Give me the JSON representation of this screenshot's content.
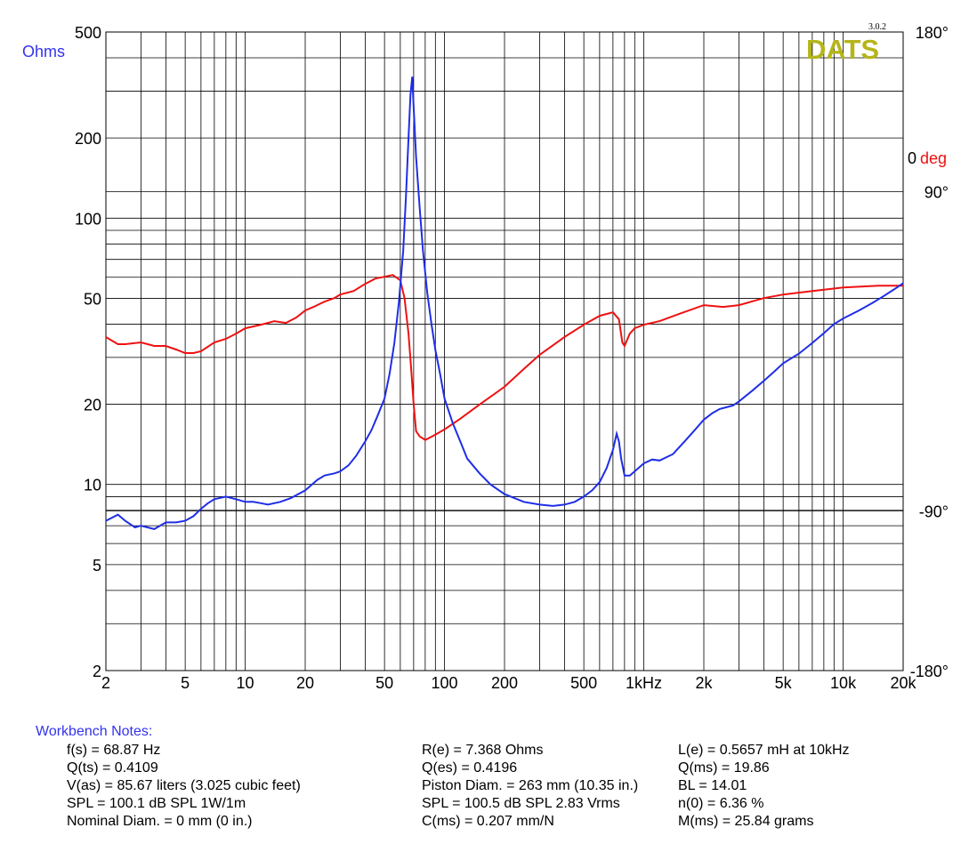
{
  "chart_data": {
    "type": "line",
    "logo": "DATS",
    "version": "3.0.2",
    "y_left_unit": "Ohms",
    "y_right_unit": "deg",
    "y_right_zero_label": "0",
    "x_scale": "log",
    "y_scale": "log",
    "xlim": [
      2,
      20000
    ],
    "ylim": [
      2,
      500
    ],
    "y_right_lim": [
      -180,
      180
    ],
    "x_ticks": [
      {
        "value": 2,
        "label": "2"
      },
      {
        "value": 5,
        "label": "5"
      },
      {
        "value": 10,
        "label": "10"
      },
      {
        "value": 20,
        "label": "20"
      },
      {
        "value": 50,
        "label": "50"
      },
      {
        "value": 100,
        "label": "100"
      },
      {
        "value": 200,
        "label": "200"
      },
      {
        "value": 500,
        "label": "500"
      },
      {
        "value": 1000,
        "label": "1kHz"
      },
      {
        "value": 2000,
        "label": "2k"
      },
      {
        "value": 5000,
        "label": "5k"
      },
      {
        "value": 10000,
        "label": "10k"
      },
      {
        "value": 20000,
        "label": "20k"
      }
    ],
    "y_ticks": [
      {
        "value": 500,
        "label": "500"
      },
      {
        "value": 200,
        "label": "200"
      },
      {
        "value": 100,
        "label": "100"
      },
      {
        "value": 50,
        "label": "50"
      },
      {
        "value": 20,
        "label": "20"
      },
      {
        "value": 10,
        "label": "10"
      },
      {
        "value": 5,
        "label": "5"
      },
      {
        "value": 2,
        "label": "2"
      }
    ],
    "y_right_ticks": [
      {
        "value": 180,
        "label": "180°"
      },
      {
        "value": 90,
        "label": "90°"
      },
      {
        "value": -90,
        "label": "-90°"
      },
      {
        "value": -180,
        "label": "-180°"
      }
    ],
    "grid": true,
    "colors": {
      "impedance": "#1f2ee6",
      "phase": "#ee1111",
      "logo": "#b5b51a",
      "label_left": "#3333ee",
      "label_right": "#ee1111",
      "notes_title": "#3333ee"
    },
    "series": [
      {
        "key": "impedance",
        "axis": "left",
        "x": [
          2,
          2.3,
          2.5,
          2.8,
          3,
          3.5,
          4,
          4.5,
          5,
          5.5,
          6,
          6.5,
          7,
          8,
          9,
          10,
          11,
          12,
          13,
          15,
          17,
          20,
          23,
          25,
          28,
          30,
          33,
          36,
          40,
          43,
          46,
          50,
          53,
          56,
          59,
          62,
          64,
          66,
          67.5,
          68.87,
          70,
          72,
          75,
          78,
          82,
          86,
          90,
          95,
          100,
          110,
          120,
          130,
          150,
          170,
          200,
          250,
          300,
          350,
          400,
          450,
          500,
          550,
          600,
          650,
          700,
          730,
          750,
          770,
          800,
          850,
          900,
          1000,
          1100,
          1200,
          1400,
          1600,
          1800,
          2000,
          2200,
          2400,
          2600,
          2800,
          3000,
          3500,
          4000,
          4500,
          5000,
          6000,
          7000,
          8000,
          9000,
          10000,
          12000,
          14000,
          16000,
          18000,
          20000
        ],
        "y": [
          7.3,
          7.7,
          7.3,
          6.9,
          7.0,
          6.8,
          7.2,
          7.2,
          7.3,
          7.6,
          8.1,
          8.5,
          8.8,
          9.0,
          8.8,
          8.6,
          8.6,
          8.5,
          8.4,
          8.6,
          8.9,
          9.5,
          10.4,
          10.8,
          11.0,
          11.2,
          11.8,
          12.8,
          14.5,
          16.0,
          18.0,
          21.0,
          26.0,
          34.0,
          48.0,
          75.0,
          120.0,
          200.0,
          290.0,
          340.0,
          260.0,
          170.0,
          110.0,
          75.0,
          52.0,
          40.0,
          32.0,
          26.0,
          21.0,
          17.0,
          14.5,
          12.5,
          11.0,
          10.0,
          9.2,
          8.6,
          8.4,
          8.3,
          8.4,
          8.6,
          9.0,
          9.5,
          10.2,
          11.5,
          13.5,
          15.5,
          14.5,
          12.5,
          10.8,
          10.8,
          11.2,
          12.0,
          12.4,
          12.3,
          13.0,
          14.5,
          16.0,
          17.5,
          18.5,
          19.2,
          19.5,
          19.8,
          20.5,
          22.5,
          24.5,
          26.5,
          28.5,
          31.0,
          34.0,
          37.0,
          40.0,
          42.0,
          45.0,
          48.0,
          51.0,
          54.0,
          57.0
        ]
      },
      {
        "key": "phase",
        "axis": "right",
        "x": [
          2,
          2.3,
          2.5,
          3,
          3.5,
          4,
          4.5,
          5,
          5.5,
          6,
          7,
          8,
          9,
          10,
          12,
          14,
          16,
          18,
          20,
          22,
          25,
          28,
          30,
          35,
          40,
          45,
          50,
          55,
          60,
          63,
          66,
          68,
          70,
          72,
          75,
          80,
          90,
          100,
          120,
          150,
          200,
          250,
          300,
          400,
          500,
          600,
          700,
          750,
          780,
          800,
          850,
          900,
          1000,
          1200,
          1500,
          2000,
          2500,
          3000,
          4000,
          5000,
          7000,
          10000,
          15000,
          20000
        ],
        "y": [
          8,
          4,
          4,
          5,
          3,
          3,
          1,
          -1,
          -1,
          0,
          5,
          7,
          10,
          13,
          15,
          17,
          16,
          19,
          23,
          25,
          28,
          30,
          32,
          34,
          38,
          41,
          42,
          43,
          40,
          30,
          10,
          -10,
          -30,
          -45,
          -48,
          -50,
          -47,
          -44,
          -38,
          -30,
          -20,
          -10,
          -2,
          8,
          15,
          20,
          22,
          18,
          5,
          3,
          10,
          13,
          15,
          17,
          21,
          26,
          25,
          26,
          30,
          32,
          34,
          36,
          37,
          37
        ]
      }
    ]
  },
  "notes": {
    "title": "Workbench Notes:",
    "col1": [
      "f(s) = 68.87 Hz",
      "Q(ts) = 0.4109",
      "V(as) = 85.67 liters  (3.025 cubic feet)",
      "SPL = 100.1 dB SPL 1W/1m",
      "Nominal Diam. = 0 mm (0 in.)"
    ],
    "col2": [
      "R(e) = 7.368 Ohms",
      "Q(es) = 0.4196",
      "Piston Diam. = 263 mm (10.35 in.)",
      "SPL = 100.5 dB SPL 2.83 Vrms",
      "C(ms) = 0.207 mm/N"
    ],
    "col3": [
      "L(e) = 0.5657 mH at 10kHz",
      "Q(ms) = 19.86",
      "BL = 14.01",
      "n(0) = 6.36 %",
      "M(ms) = 25.84 grams"
    ]
  }
}
